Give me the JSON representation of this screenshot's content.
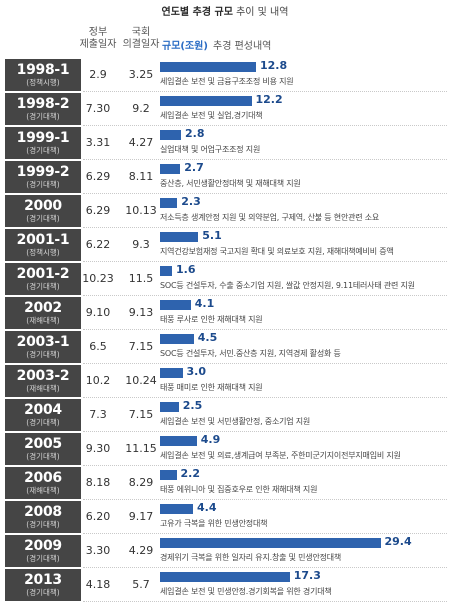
{
  "title": {
    "emphasis": "연도별 추경 규모",
    "rest": "추이 및 내역"
  },
  "headers": {
    "submitted": [
      "정부",
      "제출일자"
    ],
    "approved": [
      "국회",
      "의결일자"
    ],
    "size": "규모(조원)",
    "details": "추경 편성내역"
  },
  "colors": {
    "bar": "#2e63ae",
    "value_label": "#1c4a8c",
    "year_box": "#454545",
    "size_header": "#2a6cc4"
  },
  "chart_data": {
    "type": "bar",
    "orientation": "horizontal",
    "categories": [
      "1998-1",
      "1998-2",
      "1999-1",
      "1999-2",
      "2000",
      "2001-1",
      "2001-2",
      "2002",
      "2003-1",
      "2003-2",
      "2004",
      "2005",
      "2006",
      "2008",
      "2009",
      "2013"
    ],
    "category_notes": [
      "(정책시행)",
      "(경기대책)",
      "(경기대책)",
      "(경기대책)",
      "(경기대책)",
      "(정책시행)",
      "(경기대책)",
      "(재해대책)",
      "(경기대책)",
      "(재해대책)",
      "(경기대책)",
      "(경기대책)",
      "(재해대책)",
      "(경기대책)",
      "(경기대책)",
      "(경기대책)"
    ],
    "submitted": [
      "2.9",
      "7.30",
      "3.31",
      "6.29",
      "6.29",
      "6.22",
      "10.23",
      "9.10",
      "6.5",
      "10.2",
      "7.3",
      "9.30",
      "8.18",
      "6.20",
      "3.30",
      "4.18"
    ],
    "approved": [
      "3.25",
      "9.2",
      "4.27",
      "8.11",
      "10.13",
      "9.3",
      "11.5",
      "9.13",
      "7.15",
      "10.24",
      "7.15",
      "11.15",
      "8.29",
      "9.17",
      "4.29",
      "5.7"
    ],
    "values": [
      12.8,
      12.2,
      2.8,
      2.7,
      2.3,
      5.1,
      1.6,
      4.1,
      4.5,
      3.0,
      2.5,
      4.9,
      2.2,
      4.4,
      29.4,
      17.3
    ],
    "value_labels": [
      "12.8",
      "12.2",
      "2.8",
      "2.7",
      "2.3",
      "5.1",
      "1.6",
      "4.1",
      "4.5",
      "3.0",
      "2.5",
      "4.9",
      "2.2",
      "4.4",
      "29.4",
      "17.3"
    ],
    "details": [
      "세입결손 보전 및 금융구조조정 비용 지원",
      "세입결손 보전 및 실업,경기대책",
      "실업대책 및 어업구조조정 지원",
      "중산층, 서민생활안정대책 및 재해대책 지원",
      "저소득층 생계안정 지원 및 의약분업, 구제역, 산불 등 현안관련 소요",
      "지역건강보험재정 국고지원 확대 및 의료보호 지원, 재해대책예비비 증액",
      "SOC등 건설투자, 수출 중소기업 지원, 쌀값 안정지원, 9.11테러사태 관련 지원",
      "태풍 루사로 인한 재해대책 지원",
      "SOC등 건설투자, 서민.중산층 지원, 지역경제 활성화 등",
      "태풍 매미로 인한 재해대책 지원",
      "세입결손 보전 및 서민생활안정, 중소기업 지원",
      "세입결손 보전 및 의료,생계급여 부족분, 주한미군기지이전부지매입비 지원",
      "태풍 에위니아 및 집중호우로 인한 재해대책 지원",
      "고유가 극복을 위한 민생안정대책",
      "경제위기 극복을 위한 일자리 유지.창출 및 민생안정대책",
      "세입결손 보전 및 민생안정.경기회복을 위한 경기대책"
    ]
  }
}
